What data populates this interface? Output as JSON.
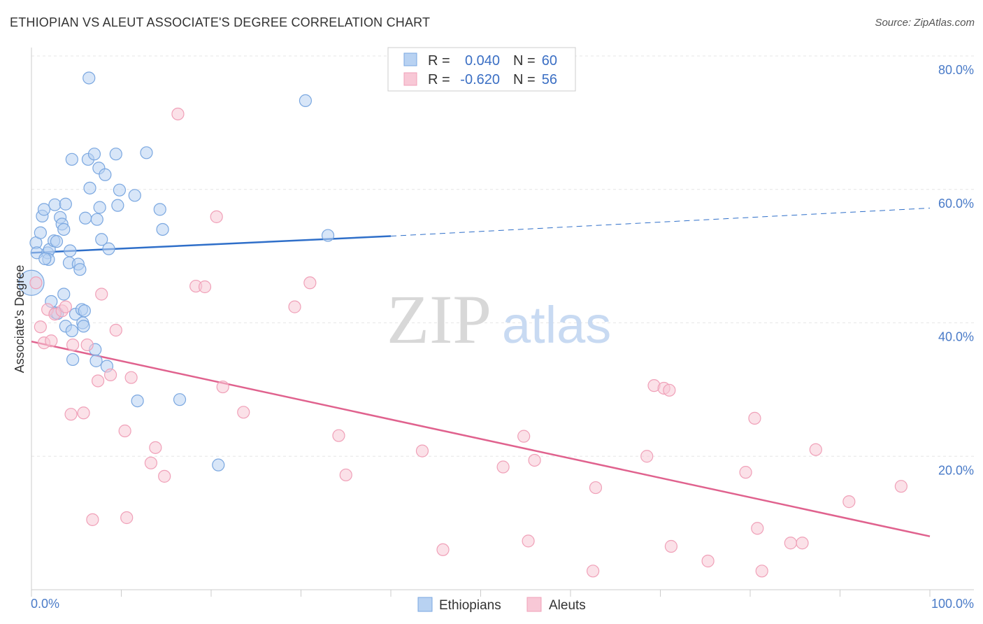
{
  "title": "ETHIOPIAN VS ALEUT ASSOCIATE'S DEGREE CORRELATION CHART",
  "source": "Source: ZipAtlas.com",
  "watermark": {
    "part1": "ZIP",
    "part2": "atlas"
  },
  "chart_data": {
    "type": "scatter",
    "ylabel": "Associate's Degree",
    "xlim": [
      0,
      100
    ],
    "ylim": [
      0,
      80
    ],
    "x_tick_labels": {
      "min": "0.0%",
      "max": "100.0%"
    },
    "y_ticks": [
      20,
      40,
      60,
      80
    ],
    "y_tick_labels": [
      "20.0%",
      "40.0%",
      "60.0%",
      "80.0%"
    ],
    "grid": true,
    "legend_position": "top-center",
    "legend": [
      {
        "r_label": "R =",
        "r_value": "0.040",
        "n_label": "N =",
        "n_value": "60"
      },
      {
        "r_label": "R =",
        "r_value": "-0.620",
        "n_label": "N =",
        "n_value": "56"
      }
    ],
    "series": [
      {
        "name": "Ethiopians",
        "color": "#7aa7e0",
        "fill": "#b8d2f2",
        "trend": {
          "x0": 0,
          "y0": 50.5,
          "x1": 40,
          "y1": 53.0,
          "dash_to_x": 100,
          "dash_to_y": 57.2
        },
        "points": [
          [
            0,
            46
          ],
          [
            0.5,
            52
          ],
          [
            0.6,
            50.5
          ],
          [
            1,
            53.5
          ],
          [
            1.2,
            56
          ],
          [
            1.4,
            57
          ],
          [
            1.8,
            50.5
          ],
          [
            2,
            51
          ],
          [
            1.9,
            49.5
          ],
          [
            2.5,
            52.3
          ],
          [
            2.6,
            57.7
          ],
          [
            2.8,
            52.2
          ],
          [
            3.2,
            55.8
          ],
          [
            3.4,
            54.8
          ],
          [
            3.6,
            54
          ],
          [
            3.8,
            57.8
          ],
          [
            4.2,
            49
          ],
          [
            4.3,
            50.8
          ],
          [
            2.2,
            43.2
          ],
          [
            2.7,
            41.5
          ],
          [
            3.6,
            44.3
          ],
          [
            3.8,
            39.5
          ],
          [
            4.5,
            38.8
          ],
          [
            4.6,
            34.5
          ],
          [
            4.9,
            41.3
          ],
          [
            5.2,
            48.8
          ],
          [
            5.4,
            48
          ],
          [
            5.6,
            42
          ],
          [
            5.7,
            40
          ],
          [
            5.8,
            39.5
          ],
          [
            5.9,
            41.8
          ],
          [
            6.0,
            55.7
          ],
          [
            6.3,
            64.5
          ],
          [
            6.5,
            60.2
          ],
          [
            7.0,
            65.3
          ],
          [
            7.1,
            36
          ],
          [
            7.2,
            34.3
          ],
          [
            7.5,
            63.2
          ],
          [
            7.6,
            57.3
          ],
          [
            7.8,
            52.5
          ],
          [
            8.2,
            62.2
          ],
          [
            8.4,
            33.5
          ],
          [
            8.6,
            51.1
          ],
          [
            9.4,
            65.3
          ],
          [
            9.6,
            57.6
          ],
          [
            9.8,
            59.9
          ],
          [
            11.5,
            59.1
          ],
          [
            11.8,
            28.3
          ],
          [
            12.8,
            65.5
          ],
          [
            14.3,
            57
          ],
          [
            14.6,
            54
          ],
          [
            16.5,
            28.5
          ],
          [
            20.8,
            18.7
          ],
          [
            30.5,
            73.3
          ],
          [
            33,
            53.1
          ],
          [
            6.4,
            76.7
          ],
          [
            4.5,
            64.5
          ],
          [
            2.9,
            41.4
          ],
          [
            1.5,
            49.6
          ],
          [
            7.3,
            55.5
          ]
        ]
      },
      {
        "name": "Aleuts",
        "color": "#f0a0b8",
        "fill": "#f8c8d6",
        "trend": {
          "x0": 0,
          "y0": 37.2,
          "x1": 100,
          "y1": 8.0
        },
        "points": [
          [
            0.5,
            46
          ],
          [
            1,
            39.4
          ],
          [
            1.4,
            37
          ],
          [
            1.8,
            42
          ],
          [
            2.2,
            37.3
          ],
          [
            2.6,
            41.3
          ],
          [
            3.4,
            41.8
          ],
          [
            3.8,
            42.4
          ],
          [
            4.4,
            26.3
          ],
          [
            4.6,
            36.7
          ],
          [
            5.8,
            26.5
          ],
          [
            6.2,
            36.7
          ],
          [
            6.8,
            10.5
          ],
          [
            7.4,
            31.3
          ],
          [
            7.8,
            44.3
          ],
          [
            8.8,
            32.2
          ],
          [
            9.4,
            38.9
          ],
          [
            10.4,
            23.8
          ],
          [
            10.6,
            10.8
          ],
          [
            11.1,
            31.8
          ],
          [
            13.3,
            19
          ],
          [
            13.8,
            21.3
          ],
          [
            14.8,
            17
          ],
          [
            16.3,
            71.3
          ],
          [
            18.3,
            45.5
          ],
          [
            19.3,
            45.4
          ],
          [
            20.6,
            55.9
          ],
          [
            21.3,
            30.4
          ],
          [
            23.6,
            26.6
          ],
          [
            29.3,
            42.4
          ],
          [
            31,
            46
          ],
          [
            34.2,
            23.1
          ],
          [
            35,
            17.2
          ],
          [
            43.5,
            20.8
          ],
          [
            45.8,
            6
          ],
          [
            52.5,
            18.4
          ],
          [
            54.8,
            23
          ],
          [
            55.3,
            7.3
          ],
          [
            56,
            19.4
          ],
          [
            62.5,
            2.8
          ],
          [
            62.8,
            15.3
          ],
          [
            68.5,
            20
          ],
          [
            69.3,
            30.6
          ],
          [
            70.4,
            30.2
          ],
          [
            71,
            29.9
          ],
          [
            71.2,
            6.5
          ],
          [
            75.3,
            4.3
          ],
          [
            79.5,
            17.6
          ],
          [
            80.5,
            25.7
          ],
          [
            80.8,
            9.2
          ],
          [
            81.3,
            2.8
          ],
          [
            84.5,
            7
          ],
          [
            85.8,
            7
          ],
          [
            87.3,
            21
          ],
          [
            91,
            13.2
          ],
          [
            96.8,
            15.5
          ]
        ]
      }
    ]
  }
}
